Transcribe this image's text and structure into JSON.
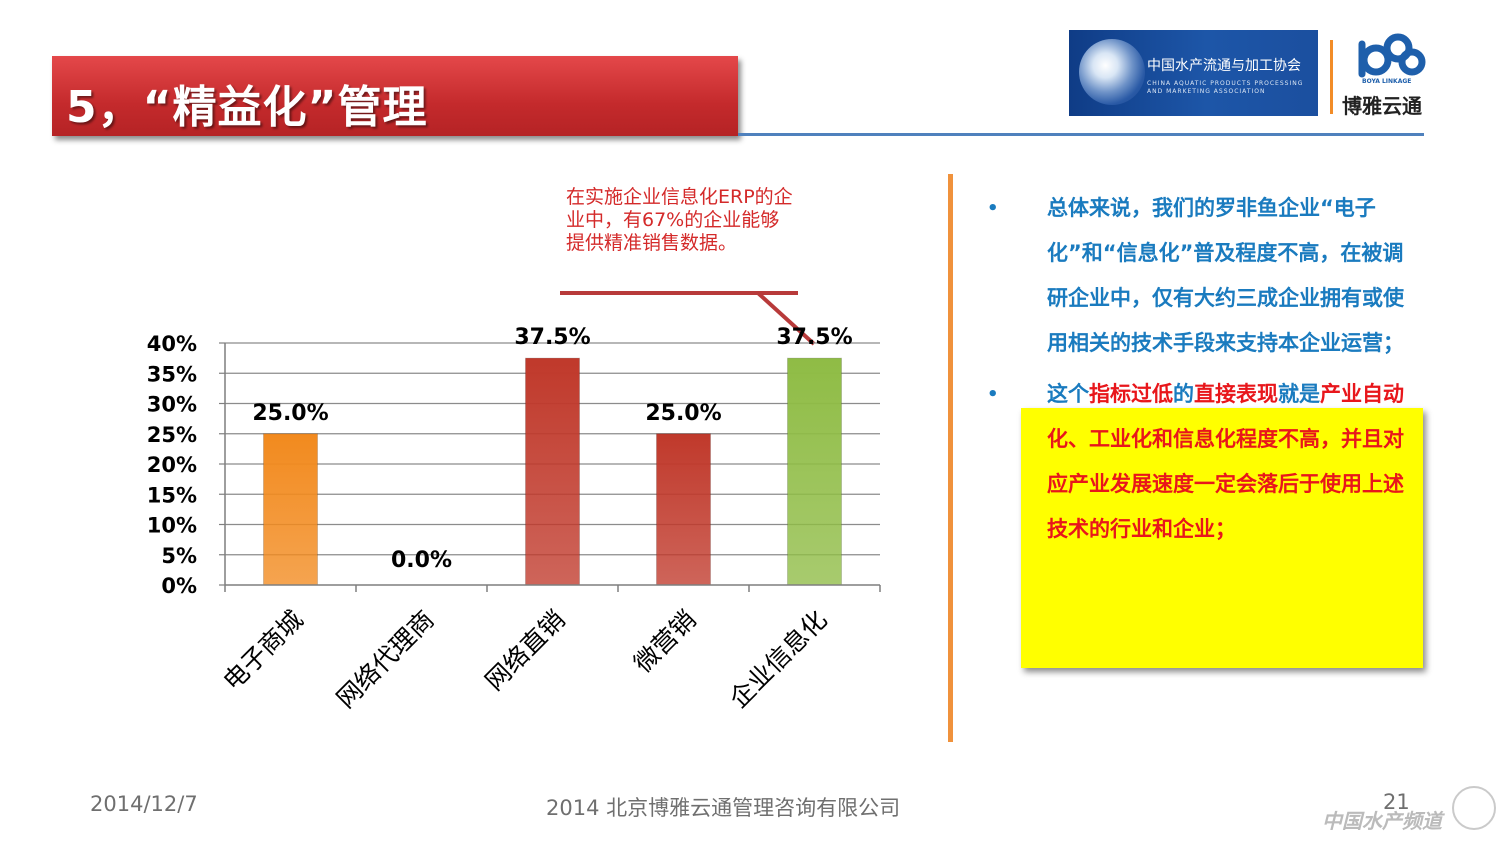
{
  "slide": {
    "title": "5，“精益化”管理",
    "callout": "在实施企业信息化ERP的企业中，有67%的企业能够提供精准销售数据。",
    "bullets": {
      "item1": "总体来说，我们的罗非鱼企业“电子化”和“信息化”普及程度不高，在被调研企业中，仅有大约三成企业拥有或使用相关的技术手段来支持本企业运营；",
      "item2_part1": "这个",
      "item2_part2": "指标过低",
      "item2_part3": "的",
      "item2_part4": "直接表现",
      "item2_part5": "就是",
      "item2_part6": "产业自动化、工业化和信息化程度不高，并且对应产业发展速度一定会落后于使用上述技术的行业和企业；"
    },
    "footer": {
      "date": "2014/12/7",
      "company": "2014 北京博雅云通管理咨询有限公司",
      "page": "21"
    },
    "logos": {
      "association_cn": "中国水产流通与加工协会",
      "association_en": "CHINA AQUATIC PRODUCTS PROCESSING AND MARKETING ASSOCIATION",
      "boya_en": "BOYA LINKAGE",
      "boya_cn": "博雅云通"
    },
    "watermark": "中国水产频道"
  },
  "colors": {
    "title_red": "#c42a2c",
    "accent_blue": "#4f81bd",
    "text_blue": "#1a7bbf",
    "text_red": "#e8161b",
    "highlight_yellow": "#ffff00",
    "divider_orange": "#f0923c"
  },
  "chart_data": {
    "type": "bar",
    "categories": [
      "电子商城",
      "网络代理商",
      "网络直销",
      "微营销",
      "企业信息化"
    ],
    "values": [
      25.0,
      0.0,
      37.5,
      25.0,
      37.5
    ],
    "data_labels": [
      "25.0%",
      "0.0%",
      "37.5%",
      "25.0%",
      "37.5%"
    ],
    "colors": [
      "#f28a1e",
      "#c0392b",
      "#c0392b",
      "#c0392b",
      "#8fbc45"
    ],
    "yticks": [
      "0%",
      "5%",
      "10%",
      "15%",
      "20%",
      "25%",
      "30%",
      "35%",
      "40%"
    ],
    "ylim": [
      0,
      40
    ],
    "grid": true,
    "legend": "none"
  }
}
